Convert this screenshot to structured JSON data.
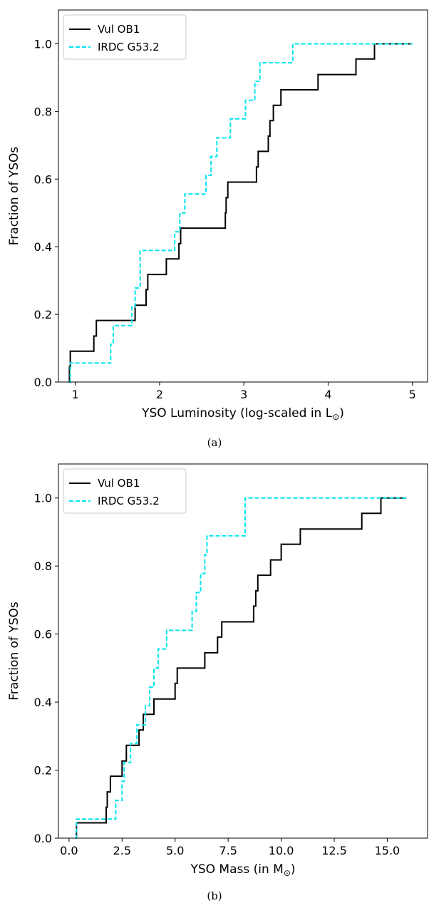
{
  "chart_data": [
    {
      "type": "line",
      "step": true,
      "caption": "(a)",
      "xlabel": "YSO Luminosity (log-scaled in L",
      "xlabel_sub": "⊙",
      "xlabel_tail": ")",
      "ylabel": "Fraction of YSOs",
      "xlim": [
        0.8,
        5.18
      ],
      "ylim": [
        0.0,
        1.1
      ],
      "xticks": [
        1,
        2,
        3,
        4,
        5
      ],
      "xtick_labels": [
        "1",
        "2",
        "3",
        "4",
        "5"
      ],
      "yticks": [
        0.0,
        0.2,
        0.4,
        0.6,
        0.8,
        1.0
      ],
      "ytick_labels": [
        "0.0",
        "0.2",
        "0.4",
        "0.6",
        "0.8",
        "1.0"
      ],
      "grid": false,
      "legend_position": "top-left",
      "series": [
        {
          "name": "Vul OB1",
          "color": "#000000",
          "style": "solid",
          "x": [
            0.92,
            0.93,
            0.94,
            1.22,
            1.25,
            1.27,
            1.71,
            1.76,
            1.84,
            1.86,
            1.93,
            2.08,
            2.23,
            2.25,
            2.78,
            2.79,
            2.81,
            3.15,
            3.17,
            3.21,
            3.29,
            3.31,
            3.35,
            3.37,
            3.44,
            3.52,
            3.61,
            3.88,
            4.12,
            4.33,
            4.55,
            4.61,
            5.0
          ],
          "y": [
            0.0,
            0.045,
            0.091,
            0.136,
            0.182,
            0.182,
            0.227,
            0.227,
            0.273,
            0.318,
            0.318,
            0.364,
            0.409,
            0.455,
            0.5,
            0.545,
            0.591,
            0.636,
            0.682,
            0.682,
            0.727,
            0.773,
            0.818,
            0.818,
            0.864,
            0.864,
            0.864,
            0.909,
            0.909,
            0.955,
            1.0,
            1.0,
            1.0
          ]
        },
        {
          "name": "IRDC G53.2",
          "color": "#00e5ee",
          "style": "dashed",
          "x": [
            0.92,
            0.94,
            1.35,
            1.42,
            1.45,
            1.67,
            1.71,
            1.77,
            2.18,
            2.24,
            2.3,
            2.36,
            2.55,
            2.61,
            2.68,
            2.84,
            2.9,
            3.02,
            3.13,
            3.19,
            3.58,
            5.0
          ],
          "y": [
            0.0,
            0.056,
            0.056,
            0.111,
            0.167,
            0.222,
            0.278,
            0.389,
            0.444,
            0.5,
            0.556,
            0.556,
            0.611,
            0.667,
            0.722,
            0.778,
            0.778,
            0.833,
            0.889,
            0.944,
            1.0,
            1.0
          ]
        }
      ]
    },
    {
      "type": "line",
      "step": true,
      "caption": "(b)",
      "xlabel": "YSO Mass (in M",
      "xlabel_sub": "⊙",
      "xlabel_tail": ")",
      "ylabel": "Fraction of YSOs",
      "xlim": [
        -0.5,
        16.9
      ],
      "ylim": [
        0.0,
        1.1
      ],
      "xticks": [
        0.0,
        2.5,
        5.0,
        7.5,
        10.0,
        12.5,
        15.0
      ],
      "xtick_labels": [
        "0.0",
        "2.5",
        "5.0",
        "7.5",
        "10.0",
        "12.5",
        "15.0"
      ],
      "yticks": [
        0.0,
        0.2,
        0.4,
        0.6,
        0.8,
        1.0
      ],
      "ytick_labels": [
        "0.0",
        "0.2",
        "0.4",
        "0.6",
        "0.8",
        "1.0"
      ],
      "grid": false,
      "legend_position": "top-left",
      "series": [
        {
          "name": "Vul OB1",
          "color": "#000000",
          "style": "solid",
          "x": [
            0.3,
            0.35,
            1.75,
            1.8,
            1.95,
            2.5,
            2.7,
            3.3,
            3.5,
            3.7,
            4.0,
            5.0,
            5.1,
            5.3,
            6.4,
            7.0,
            7.2,
            8.7,
            8.8,
            8.9,
            9.5,
            10.0,
            10.6,
            10.9,
            13.8,
            14.7,
            15.9
          ],
          "y": [
            0.0,
            0.045,
            0.091,
            0.136,
            0.182,
            0.227,
            0.273,
            0.318,
            0.364,
            0.364,
            0.409,
            0.455,
            0.5,
            0.5,
            0.545,
            0.591,
            0.636,
            0.682,
            0.727,
            0.773,
            0.818,
            0.864,
            0.864,
            0.909,
            0.955,
            1.0,
            1.0
          ]
        },
        {
          "name": "IRDC G53.2",
          "color": "#00e5ee",
          "style": "dashed",
          "x": [
            0.3,
            0.35,
            2.2,
            2.5,
            2.6,
            2.9,
            3.2,
            3.6,
            3.8,
            4.0,
            4.2,
            4.6,
            5.8,
            6.0,
            6.2,
            6.4,
            6.5,
            8.3,
            15.9
          ],
          "y": [
            0.0,
            0.056,
            0.111,
            0.167,
            0.222,
            0.278,
            0.333,
            0.389,
            0.444,
            0.5,
            0.556,
            0.611,
            0.667,
            0.722,
            0.778,
            0.833,
            0.889,
            1.0,
            1.0
          ]
        }
      ]
    }
  ]
}
